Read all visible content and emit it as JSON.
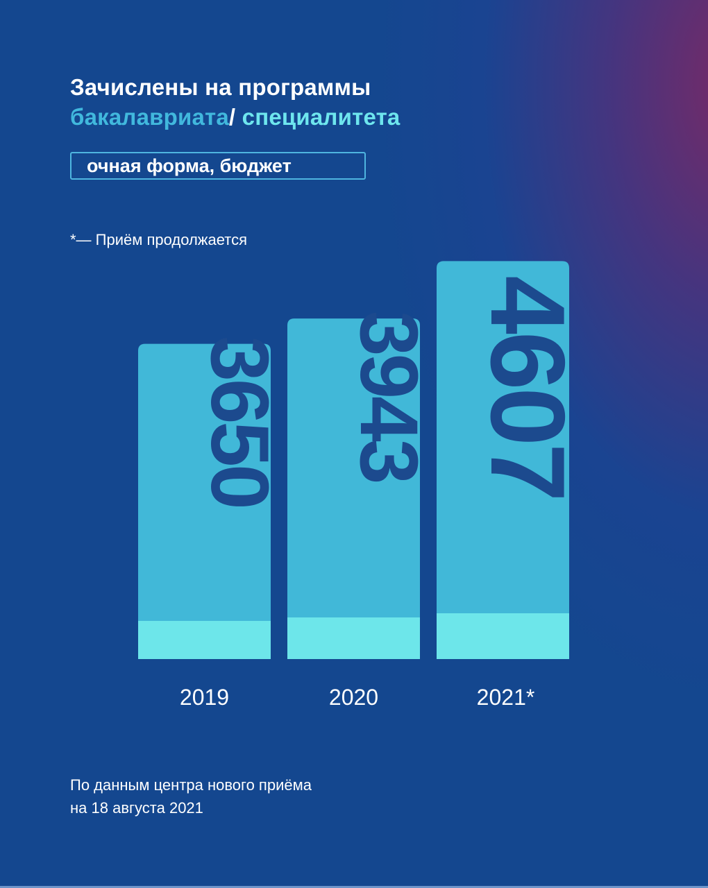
{
  "header": {
    "title_line1": "Зачислены на программы",
    "title_accent1": "бакалавриата",
    "title_slash": "/",
    "title_accent2": "специалитета"
  },
  "tag": {
    "label": "очная форма, бюджет"
  },
  "note": "*— Приём продолжается",
  "footer": {
    "line1": "По данным центра нового приёма",
    "line2": "на 18 августа 2021"
  },
  "colors": {
    "background": "#14478f",
    "bar_main": "#41b8d8",
    "bar_base": "#6de6ea",
    "value_text": "#1c4a8e",
    "accent1": "#41b8dd",
    "accent2": "#6ee6ee"
  },
  "chart_data": {
    "type": "bar",
    "categories": [
      "2019",
      "2020",
      "2021*"
    ],
    "values": [
      3650,
      3943,
      4607
    ],
    "value_labels": [
      "3650",
      "3943",
      "4607"
    ],
    "title": "",
    "xlabel": "",
    "ylabel": "",
    "ylim": [
      0,
      4800
    ],
    "grid": false,
    "value_label_orientation": "vertical"
  }
}
